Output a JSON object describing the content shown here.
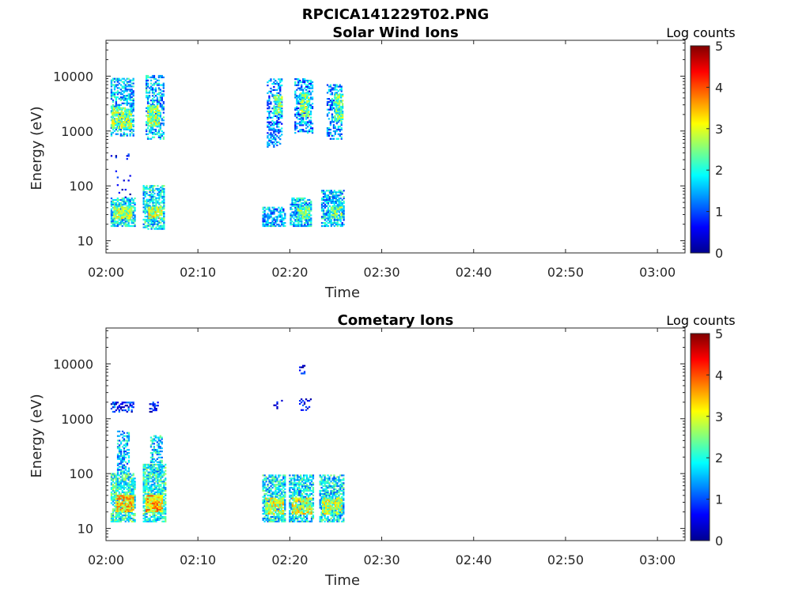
{
  "figure_title": "RPCICA141229T02.PNG",
  "colormap": [
    "#00008f",
    "#0000ff",
    "#0080ff",
    "#00ffff",
    "#80ff80",
    "#ffff00",
    "#ff8000",
    "#ff0000",
    "#800000"
  ],
  "chart_data": [
    {
      "type": "heatmap",
      "title": "Solar Wind Ions",
      "xlabel": "Time",
      "ylabel": "Energy (eV)",
      "x_tick_labels": [
        "02:00",
        "02:10",
        "02:20",
        "02:30",
        "02:40",
        "02:50",
        "03:00"
      ],
      "x_tick_minutes": [
        0,
        10,
        20,
        30,
        40,
        50,
        60
      ],
      "xlim_minutes": [
        0,
        63
      ],
      "y_scale": "log",
      "y_tick_labels": [
        "10",
        "100",
        "1000",
        "10000"
      ],
      "y_tick_values": [
        10,
        100,
        1000,
        10000
      ],
      "ylim": [
        6,
        45000
      ],
      "colorbar_label": "Log counts",
      "colorbar_ticks": [
        "0",
        "1",
        "2",
        "3",
        "4",
        "5"
      ],
      "clim": [
        0,
        5
      ],
      "blobs": [
        {
          "t": [
            0.5,
            3.0
          ],
          "e": [
            800,
            9000
          ],
          "c": 1.6,
          "d": 0.55
        },
        {
          "t": [
            0.6,
            2.8
          ],
          "e": [
            1100,
            2600
          ],
          "c": 2.6,
          "d": 0.8
        },
        {
          "t": [
            0.5,
            3.2
          ],
          "e": [
            18,
            60
          ],
          "c": 1.8,
          "d": 0.7
        },
        {
          "t": [
            0.8,
            2.8
          ],
          "e": [
            25,
            40
          ],
          "c": 2.7,
          "d": 0.85
        },
        {
          "t": [
            0.5,
            3.0
          ],
          "e": [
            60,
            400
          ],
          "c": 0.3,
          "d": 0.08
        },
        {
          "t": [
            4.3,
            6.3
          ],
          "e": [
            700,
            10000
          ],
          "c": 1.6,
          "d": 0.55
        },
        {
          "t": [
            4.5,
            5.8
          ],
          "e": [
            1200,
            2800
          ],
          "c": 2.6,
          "d": 0.8
        },
        {
          "t": [
            4.0,
            6.3
          ],
          "e": [
            16,
            100
          ],
          "c": 1.8,
          "d": 0.7
        },
        {
          "t": [
            4.6,
            6.0
          ],
          "e": [
            25,
            40
          ],
          "c": 2.8,
          "d": 0.85
        },
        {
          "t": [
            17.0,
            19.5
          ],
          "e": [
            18,
            40
          ],
          "c": 1.5,
          "d": 0.7
        },
        {
          "t": [
            17.5,
            19.2
          ],
          "e": [
            500,
            9000
          ],
          "c": 1.3,
          "d": 0.45
        },
        {
          "t": [
            18.2,
            19.2
          ],
          "e": [
            2000,
            4500
          ],
          "c": 2.4,
          "d": 0.75
        },
        {
          "t": [
            20.0,
            22.3
          ],
          "e": [
            18,
            60
          ],
          "c": 1.6,
          "d": 0.7
        },
        {
          "t": [
            20.8,
            22.1
          ],
          "e": [
            25,
            40
          ],
          "c": 2.4,
          "d": 0.7
        },
        {
          "t": [
            20.5,
            22.5
          ],
          "e": [
            900,
            9000
          ],
          "c": 1.4,
          "d": 0.5
        },
        {
          "t": [
            21.1,
            22.1
          ],
          "e": [
            1800,
            4800
          ],
          "c": 2.5,
          "d": 0.75
        },
        {
          "t": [
            23.4,
            25.8
          ],
          "e": [
            18,
            80
          ],
          "c": 1.6,
          "d": 0.7
        },
        {
          "t": [
            24.5,
            25.6
          ],
          "e": [
            25,
            40
          ],
          "c": 2.3,
          "d": 0.7
        },
        {
          "t": [
            24.0,
            25.7
          ],
          "e": [
            700,
            7000
          ],
          "c": 1.4,
          "d": 0.5
        },
        {
          "t": [
            24.8,
            25.7
          ],
          "e": [
            1500,
            4500
          ],
          "c": 2.3,
          "d": 0.8
        }
      ]
    },
    {
      "type": "heatmap",
      "title": "Cometary Ions",
      "xlabel": "Time",
      "ylabel": "Energy (eV)",
      "x_tick_labels": [
        "02:00",
        "02:10",
        "02:20",
        "02:30",
        "02:40",
        "02:50",
        "03:00"
      ],
      "x_tick_minutes": [
        0,
        10,
        20,
        30,
        40,
        50,
        60
      ],
      "xlim_minutes": [
        0,
        63
      ],
      "y_scale": "log",
      "y_tick_labels": [
        "10",
        "100",
        "1000",
        "10000"
      ],
      "y_tick_values": [
        10,
        100,
        1000,
        10000
      ],
      "ylim": [
        6,
        45000
      ],
      "colorbar_label": "Log counts",
      "colorbar_ticks": [
        "0",
        "1",
        "2",
        "3",
        "4",
        "5"
      ],
      "clim": [
        0,
        5
      ],
      "blobs": [
        {
          "t": [
            0.5,
            3.2
          ],
          "e": [
            13,
            100
          ],
          "c": 2.0,
          "d": 0.75
        },
        {
          "t": [
            1.0,
            3.0
          ],
          "e": [
            20,
            40
          ],
          "c": 3.2,
          "d": 0.85
        },
        {
          "t": [
            1.2,
            2.5
          ],
          "e": [
            100,
            600
          ],
          "c": 1.6,
          "d": 0.5
        },
        {
          "t": [
            0.5,
            3.0
          ],
          "e": [
            1300,
            2000
          ],
          "c": 0.8,
          "d": 0.5
        },
        {
          "t": [
            4.0,
            6.5
          ],
          "e": [
            13,
            150
          ],
          "c": 2.0,
          "d": 0.75
        },
        {
          "t": [
            4.3,
            6.0
          ],
          "e": [
            20,
            40
          ],
          "c": 3.3,
          "d": 0.85
        },
        {
          "t": [
            4.8,
            6.0
          ],
          "e": [
            100,
            500
          ],
          "c": 1.7,
          "d": 0.5
        },
        {
          "t": [
            4.7,
            5.6
          ],
          "e": [
            1300,
            2000
          ],
          "c": 0.6,
          "d": 0.5
        },
        {
          "t": [
            17.0,
            19.5
          ],
          "e": [
            13,
            90
          ],
          "c": 1.8,
          "d": 0.7
        },
        {
          "t": [
            17.3,
            19.2
          ],
          "e": [
            18,
            35
          ],
          "c": 2.9,
          "d": 0.8
        },
        {
          "t": [
            19.9,
            22.6
          ],
          "e": [
            13,
            90
          ],
          "c": 1.8,
          "d": 0.7
        },
        {
          "t": [
            20.2,
            22.3
          ],
          "e": [
            18,
            35
          ],
          "c": 2.9,
          "d": 0.8
        },
        {
          "t": [
            23.2,
            25.9
          ],
          "e": [
            13,
            90
          ],
          "c": 1.8,
          "d": 0.7
        },
        {
          "t": [
            23.5,
            25.6
          ],
          "e": [
            18,
            35
          ],
          "c": 2.7,
          "d": 0.8
        },
        {
          "t": [
            18.2,
            19.2
          ],
          "e": [
            1500,
            2500
          ],
          "c": 0.4,
          "d": 0.3
        },
        {
          "t": [
            21.0,
            22.3
          ],
          "e": [
            1400,
            2200
          ],
          "c": 0.4,
          "d": 0.3
        },
        {
          "t": [
            21.0,
            21.6
          ],
          "e": [
            6500,
            9000
          ],
          "c": 0.5,
          "d": 0.6
        }
      ]
    }
  ]
}
